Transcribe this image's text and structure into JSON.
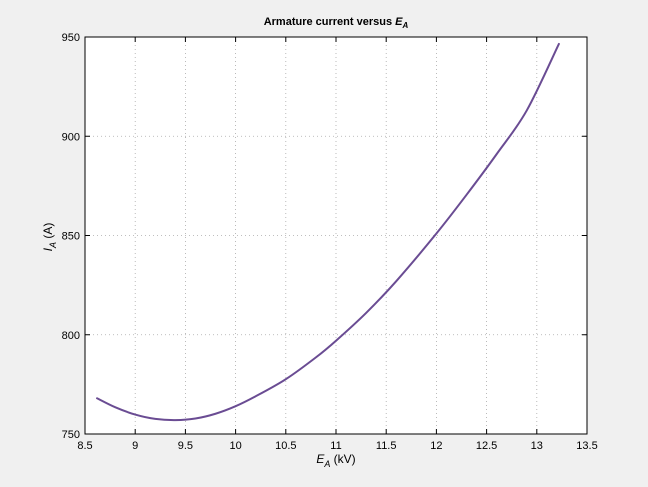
{
  "chart_data": {
    "type": "line",
    "title": "Armature current versus",
    "title_math": {
      "main": "E",
      "sub": "A"
    },
    "xlabel": {
      "main": "E",
      "sub": "A",
      "rest": " (kV)"
    },
    "ylabel": {
      "main": "I",
      "sub": "A",
      "rest": " (A)"
    },
    "xlim": [
      8.5,
      13.5
    ],
    "ylim": [
      750,
      950
    ],
    "xticks": [
      8.5,
      9,
      9.5,
      10,
      10.5,
      11,
      11.5,
      12,
      12.5,
      13,
      13.5
    ],
    "xtick_labels": [
      "8.5",
      "9",
      "9.5",
      "10",
      "10.5",
      "11",
      "11.5",
      "12",
      "12.5",
      "13",
      "13.5"
    ],
    "yticks": [
      750,
      800,
      850,
      900,
      950
    ],
    "ytick_labels": [
      "750",
      "800",
      "850",
      "900",
      "950"
    ],
    "grid": true,
    "line_color": "#6a4c93",
    "series": [
      {
        "x": [
          8.62,
          8.8,
          9.0,
          9.2,
          9.4,
          9.6,
          9.8,
          10.0,
          10.2,
          10.5,
          10.8,
          11.0,
          11.3,
          11.6,
          12.0,
          12.3,
          12.6,
          12.9,
          13.22
        ],
        "y": [
          768,
          763.5,
          759.8,
          757.6,
          757.0,
          757.8,
          760.2,
          764.0,
          769.0,
          777.6,
          788.6,
          797.0,
          811.0,
          827.0,
          851.0,
          870.5,
          891.0,
          913.0,
          946.5
        ]
      }
    ]
  }
}
